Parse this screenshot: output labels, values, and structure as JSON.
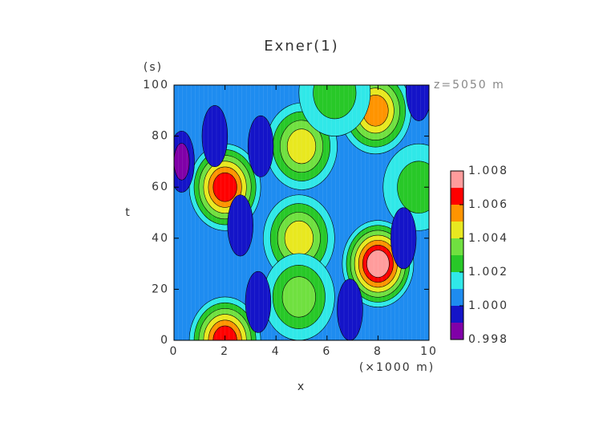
{
  "chart_data": {
    "type": "contour",
    "title": "Exner(1)",
    "x_label": "x",
    "x_unit": "(×1000 m)",
    "y_label": "t",
    "y_unit": "(s)",
    "annotation": "z=5050 m",
    "xlim": [
      0,
      10
    ],
    "xticks": [
      0,
      2,
      4,
      6,
      8,
      10
    ],
    "ylim": [
      0,
      100
    ],
    "yticks": [
      0,
      20,
      40,
      60,
      80,
      100
    ],
    "clevels": [
      0.998,
      0.999,
      1.0,
      1.001,
      1.002,
      1.003,
      1.004,
      1.005,
      1.006,
      1.007,
      1.008
    ],
    "colors": [
      "#8000a8",
      "#1414c8",
      "#1e8cf0",
      "#30e8e8",
      "#28c828",
      "#70e040",
      "#e8e820",
      "#ff9400",
      "#ff0000",
      "#ff9c9c"
    ],
    "cticks": [
      0.998,
      {
        "value": 1.0,
        "label": "1.000"
      },
      1.002,
      1.004,
      1.006,
      1.008
    ],
    "peaks": [
      {
        "x": 2,
        "t": 60,
        "value": 1.006
      },
      {
        "x": 2,
        "t": 0,
        "value": 1.006
      },
      {
        "x": 8,
        "t": 30,
        "value": 1.007
      },
      {
        "x": 7.9,
        "t": 90,
        "value": 1.005
      },
      {
        "x": 5,
        "t": 76,
        "value": 1.004
      },
      {
        "x": 4.9,
        "t": 40,
        "value": 1.004
      },
      {
        "x": 4.9,
        "t": 17,
        "value": 1.003
      },
      {
        "x": 6.3,
        "t": 97,
        "value": 1.002
      },
      {
        "x": 9.6,
        "t": 60,
        "value": 1.002
      },
      {
        "x": 0.3,
        "t": 70,
        "value": 0.998
      },
      {
        "x": 1.6,
        "t": 80,
        "value": 0.999
      },
      {
        "x": 3.4,
        "t": 76,
        "value": 0.999
      },
      {
        "x": 9.0,
        "t": 40,
        "value": 0.999
      },
      {
        "x": 2.6,
        "t": 45,
        "value": 0.999
      },
      {
        "x": 3.3,
        "t": 15,
        "value": 0.999
      },
      {
        "x": 6.9,
        "t": 12,
        "value": 0.999
      },
      {
        "x": 9.6,
        "t": 98,
        "value": 0.999
      }
    ]
  }
}
